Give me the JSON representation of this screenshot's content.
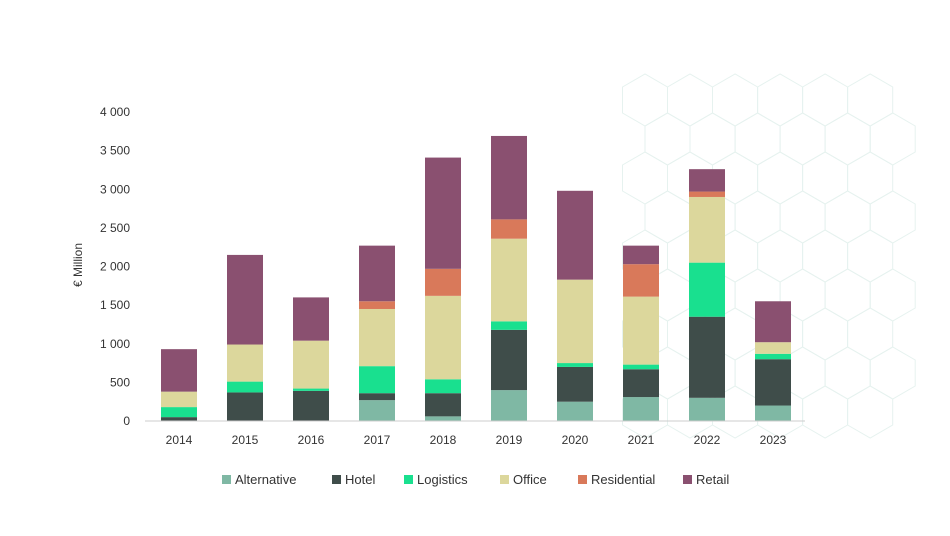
{
  "chart_data": {
    "type": "bar",
    "stacked": true,
    "title": "",
    "xlabel": "",
    "ylabel": "€ Million",
    "ylim": [
      0,
      4000
    ],
    "y_ticks": [
      "0",
      "500",
      "1 000",
      "1 500",
      "2 000",
      "2 500",
      "3 000",
      "3 500",
      "4 000"
    ],
    "y_tick_values": [
      0,
      500,
      1000,
      1500,
      2000,
      2500,
      3000,
      3500,
      4000
    ],
    "categories": [
      "2014",
      "2015",
      "2016",
      "2017",
      "2018",
      "2019",
      "2020",
      "2021",
      "2022",
      "2023"
    ],
    "grid": false,
    "legend_position": "bottom",
    "series": [
      {
        "name": "Alternative",
        "color": "#7fb8a4",
        "values": [
          0,
          0,
          0,
          270,
          60,
          400,
          250,
          310,
          300,
          200
        ]
      },
      {
        "name": "Hotel",
        "color": "#3f4d4a",
        "values": [
          50,
          370,
          390,
          90,
          300,
          780,
          450,
          360,
          1050,
          600
        ]
      },
      {
        "name": "Logistics",
        "color": "#19e08f",
        "values": [
          130,
          140,
          30,
          350,
          180,
          110,
          50,
          60,
          700,
          70
        ]
      },
      {
        "name": "Office",
        "color": "#dcd79c",
        "values": [
          200,
          480,
          620,
          740,
          1080,
          1070,
          1080,
          880,
          850,
          150
        ]
      },
      {
        "name": "Residential",
        "color": "#d9795a",
        "values": [
          0,
          0,
          0,
          100,
          350,
          250,
          0,
          420,
          70,
          0
        ]
      },
      {
        "name": "Retail",
        "color": "#8a5070",
        "values": [
          550,
          1160,
          560,
          720,
          1440,
          1080,
          1150,
          240,
          290,
          530
        ]
      }
    ]
  }
}
